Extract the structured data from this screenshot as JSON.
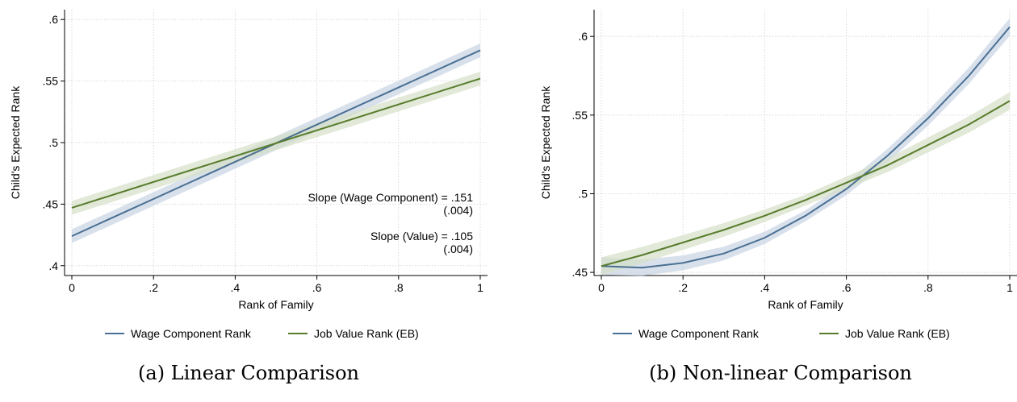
{
  "colors": {
    "wage": "#4a6f93",
    "value": "#587c2c",
    "band": "#c8d4e2",
    "band2": "#d5dfc8",
    "grid": "#d9d9d9"
  },
  "chart_data": [
    {
      "type": "line",
      "caption": "(a) Linear Comparison",
      "xlabel": "Rank of Family",
      "ylabel": "Child's Expected Rank",
      "xlim": [
        0,
        1
      ],
      "ylim": [
        0.392,
        0.608
      ],
      "x_ticks": [
        0,
        0.2,
        0.4,
        0.6,
        0.8,
        1
      ],
      "x_tick_labels": [
        "0",
        ".2",
        ".4",
        ".6",
        ".8",
        "1"
      ],
      "y_ticks": [
        0.4,
        0.45,
        0.5,
        0.55,
        0.6
      ],
      "y_tick_labels": [
        ".4",
        ".45",
        ".5",
        ".55",
        ".6"
      ],
      "grid": true,
      "legend_position": "bottom",
      "series": [
        {
          "name": "Wage Component Rank",
          "x": [
            0,
            1
          ],
          "y": [
            0.424,
            0.575
          ]
        },
        {
          "name": "Job Value Rank (EB)",
          "x": [
            0,
            1
          ],
          "y": [
            0.447,
            0.552
          ]
        }
      ],
      "annotations": [
        {
          "text": "Slope (Wage Component) = .151",
          "se": "(.004)"
        },
        {
          "text": "Slope (Value) = .105",
          "se": "(.004)"
        }
      ]
    },
    {
      "type": "line",
      "caption": "(b) Non-linear Comparison",
      "xlabel": "Rank of Family",
      "ylabel": "Child's Expected Rank",
      "xlim": [
        0,
        1
      ],
      "ylim": [
        0.448,
        0.617
      ],
      "x_ticks": [
        0,
        0.2,
        0.4,
        0.6,
        0.8,
        1
      ],
      "x_tick_labels": [
        "0",
        ".2",
        ".4",
        ".6",
        ".8",
        "1"
      ],
      "y_ticks": [
        0.45,
        0.5,
        0.55,
        0.6
      ],
      "y_tick_labels": [
        ".45",
        ".5",
        ".55",
        ".6"
      ],
      "grid": true,
      "legend_position": "bottom",
      "series": [
        {
          "name": "Wage Component Rank",
          "x": [
            0,
            0.1,
            0.2,
            0.3,
            0.4,
            0.5,
            0.6,
            0.7,
            0.8,
            0.9,
            1
          ],
          "y": [
            0.454,
            0.453,
            0.456,
            0.462,
            0.472,
            0.486,
            0.503,
            0.524,
            0.548,
            0.575,
            0.606
          ]
        },
        {
          "name": "Job Value Rank (EB)",
          "x": [
            0,
            0.1,
            0.2,
            0.3,
            0.4,
            0.5,
            0.6,
            0.7,
            0.8,
            0.9,
            1
          ],
          "y": [
            0.454,
            0.461,
            0.469,
            0.477,
            0.486,
            0.496,
            0.507,
            0.518,
            0.531,
            0.544,
            0.559
          ]
        }
      ],
      "annotations": []
    }
  ]
}
